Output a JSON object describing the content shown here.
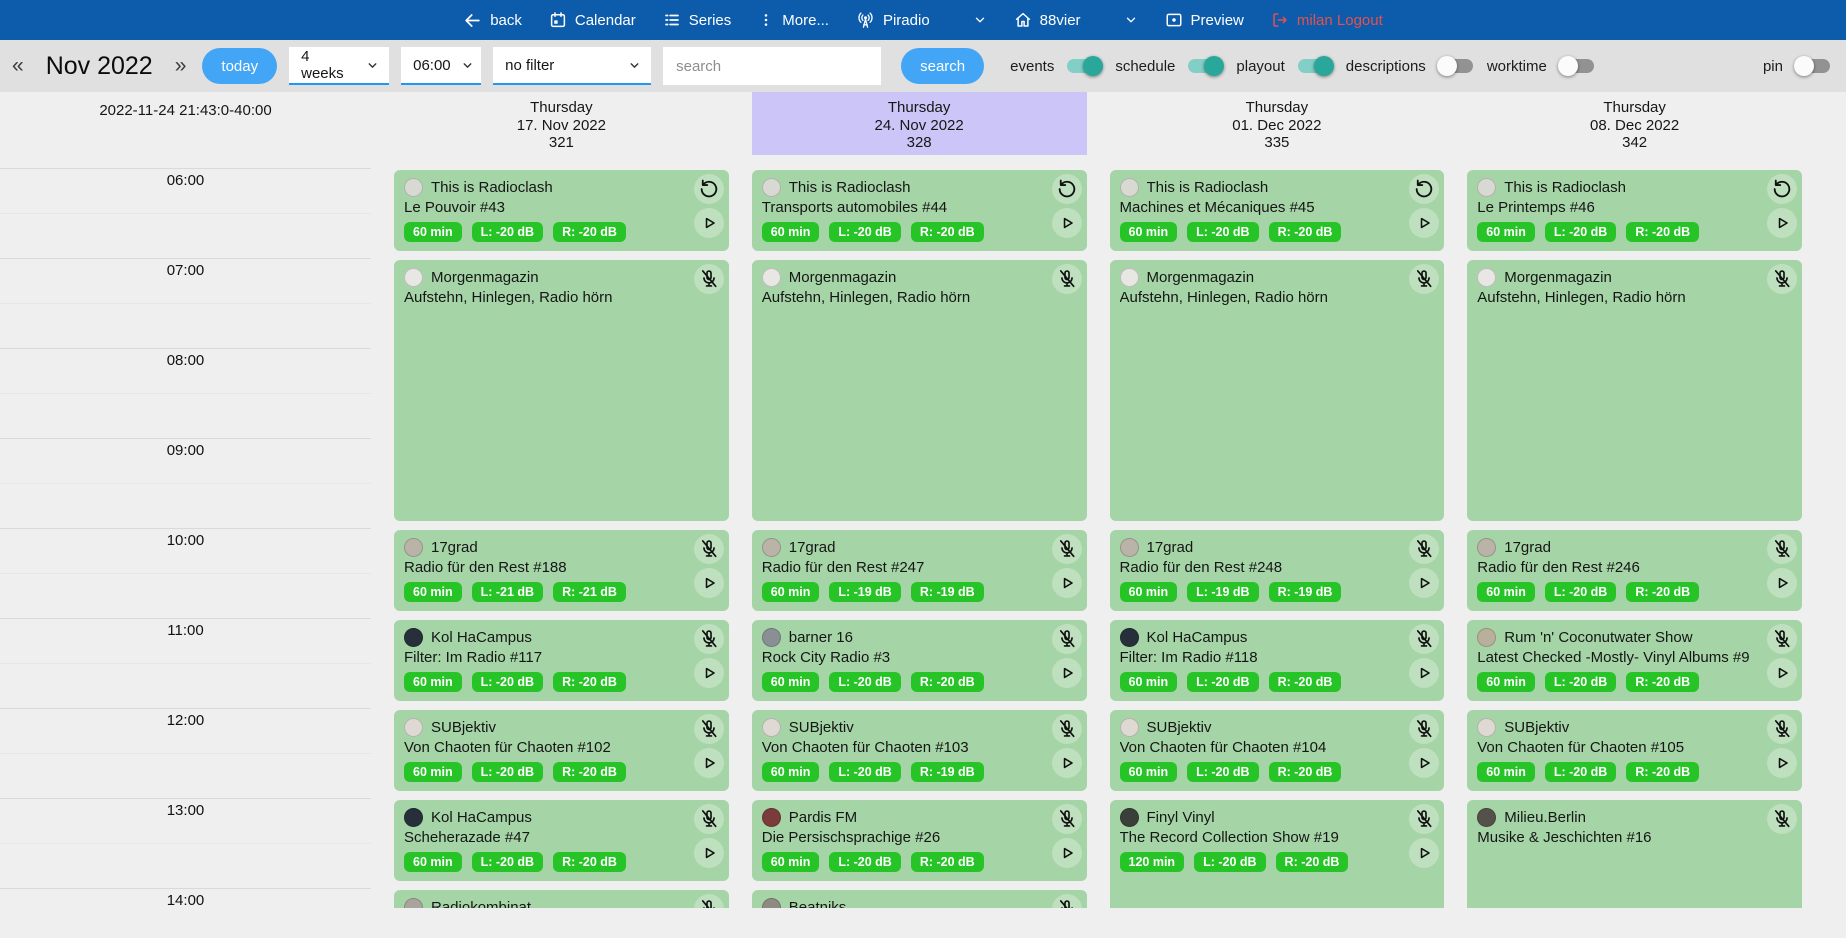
{
  "colors": {
    "topbar_bg": "#0d5cab",
    "accent_blue": "#42a5f5",
    "toolbar_bg": "#e0e0e0",
    "page_bg": "#efefef",
    "highlight_lavender": "#ccc5f7",
    "card_green": "#a5d4a6",
    "badge_green": "#27c427",
    "toggle_on": "#29a79a",
    "logout_red": "#e4504e"
  },
  "topbar": {
    "items": [
      {
        "id": "back",
        "icon": "arrow-left-icon",
        "label": "back"
      },
      {
        "id": "calendar",
        "icon": "calendar-icon",
        "label": "Calendar"
      },
      {
        "id": "series",
        "icon": "list-icon",
        "label": "Series"
      },
      {
        "id": "more",
        "icon": "kebab-icon",
        "label": "More..."
      },
      {
        "id": "piradio",
        "icon": "antenna-icon",
        "label": "Piradio",
        "chevron": true
      },
      {
        "id": "88vier",
        "icon": "home-icon",
        "label": "88vier",
        "chevron": true
      },
      {
        "id": "preview",
        "icon": "preview-icon",
        "label": "Preview"
      },
      {
        "id": "logout",
        "icon": "logout-icon",
        "label": "milan Logout",
        "danger": true
      }
    ]
  },
  "toolbar": {
    "prev_label": "«",
    "month_label": "Nov 2022",
    "next_label": "»",
    "today_label": "today",
    "range_value": "4 weeks",
    "start_time_value": "06:00",
    "filter_value": "no filter",
    "search_placeholder": "search",
    "search_label": "search",
    "toggles": [
      {
        "label": "events",
        "on": true
      },
      {
        "label": "schedule",
        "on": true
      },
      {
        "label": "playout",
        "on": true
      },
      {
        "label": "descriptions",
        "on": false
      },
      {
        "label": "worktime",
        "on": false
      }
    ],
    "pin_toggle": {
      "label": "pin",
      "on": false
    }
  },
  "calendar": {
    "timestamp": "2022-11-24 21:43:0-40:00",
    "times": [
      "06:00",
      "07:00",
      "08:00",
      "09:00",
      "10:00",
      "11:00",
      "12:00",
      "13:00",
      "14:00"
    ],
    "columns": [
      {
        "weekday": "Thursday",
        "date": "17. Nov 2022",
        "day_number": "321",
        "highlight": false,
        "events": [
          {
            "series": "This is Radioclash",
            "title": "Le Pouvoir #43",
            "start": "06:00",
            "duration_min": 60,
            "badges": [
              "60 min",
              "L: -20 dB",
              "R: -20 dB"
            ],
            "corner_icon": "rotate-ccw-icon",
            "has_play": true,
            "avatar_color": "#d9d9d4"
          },
          {
            "series": "Morgenmagazin",
            "title": "Aufstehn, Hinlegen, Radio hörn",
            "start": "07:00",
            "duration_min": 180,
            "badges": [],
            "corner_icon": "mic-off-icon",
            "has_play": false,
            "avatar_color": "#e9e7e3"
          },
          {
            "series": "17grad",
            "title": "Radio für den Rest #188",
            "start": "10:00",
            "duration_min": 60,
            "badges": [
              "60 min",
              "L: -21 dB",
              "R: -21 dB"
            ],
            "corner_icon": "mic-off-icon",
            "has_play": true,
            "avatar_color": "#b9b3a8"
          },
          {
            "series": "Kol HaCampus",
            "title": "Filter: Im Radio #117",
            "start": "11:00",
            "duration_min": 60,
            "badges": [
              "60 min",
              "L: -20 dB",
              "R: -20 dB"
            ],
            "corner_icon": "mic-off-icon",
            "has_play": true,
            "avatar_color": "#27303a"
          },
          {
            "series": "SUBjektiv",
            "title": "Von Chaoten für Chaoten #102",
            "start": "12:00",
            "duration_min": 60,
            "badges": [
              "60 min",
              "L: -20 dB",
              "R: -20 dB"
            ],
            "corner_icon": "mic-off-icon",
            "has_play": true,
            "avatar_color": "#ded9d2"
          },
          {
            "series": "Kol HaCampus",
            "title": "Scheherazade #47",
            "start": "13:00",
            "duration_min": 60,
            "badges": [
              "60 min",
              "L: -20 dB",
              "R: -20 dB"
            ],
            "corner_icon": "mic-off-icon",
            "has_play": true,
            "avatar_color": "#27303a"
          },
          {
            "series": "Radiokombinat",
            "title": "",
            "start": "14:00",
            "duration_min": 60,
            "badges": [],
            "corner_icon": "mic-off-icon",
            "has_play": false,
            "avatar_color": "#a9a49c"
          }
        ]
      },
      {
        "weekday": "Thursday",
        "date": "24. Nov 2022",
        "day_number": "328",
        "highlight": true,
        "events": [
          {
            "series": "This is Radioclash",
            "title": "Transports automobiles #44",
            "start": "06:00",
            "duration_min": 60,
            "badges": [
              "60 min",
              "L: -20 dB",
              "R: -20 dB"
            ],
            "corner_icon": "rotate-ccw-icon",
            "has_play": true,
            "avatar_color": "#d9d9d4"
          },
          {
            "series": "Morgenmagazin",
            "title": "Aufstehn, Hinlegen, Radio hörn",
            "start": "07:00",
            "duration_min": 180,
            "badges": [],
            "corner_icon": "mic-off-icon",
            "has_play": false,
            "avatar_color": "#e9e7e3"
          },
          {
            "series": "17grad",
            "title": "Radio für den Rest #247",
            "start": "10:00",
            "duration_min": 60,
            "badges": [
              "60 min",
              "L: -19 dB",
              "R: -19 dB"
            ],
            "corner_icon": "mic-off-icon",
            "has_play": true,
            "avatar_color": "#b9b3a8"
          },
          {
            "series": "barner 16",
            "title": "Rock City Radio #3",
            "start": "11:00",
            "duration_min": 60,
            "badges": [
              "60 min",
              "L: -20 dB",
              "R: -20 dB"
            ],
            "corner_icon": "mic-off-icon",
            "has_play": true,
            "avatar_color": "#8a8f96"
          },
          {
            "series": "SUBjektiv",
            "title": "Von Chaoten für Chaoten #103",
            "start": "12:00",
            "duration_min": 60,
            "badges": [
              "60 min",
              "L: -20 dB",
              "R: -19 dB"
            ],
            "corner_icon": "mic-off-icon",
            "has_play": true,
            "avatar_color": "#ded9d2"
          },
          {
            "series": "Pardis FM",
            "title": "Die Persischsprachige #26",
            "start": "13:00",
            "duration_min": 60,
            "badges": [
              "60 min",
              "L: -20 dB",
              "R: -20 dB"
            ],
            "corner_icon": "mic-off-icon",
            "has_play": true,
            "avatar_color": "#7a3b3b"
          },
          {
            "series": "Beatniks",
            "title": "",
            "start": "14:00",
            "duration_min": 60,
            "badges": [],
            "corner_icon": "mic-off-icon",
            "has_play": false,
            "avatar_color": "#8f8a82"
          }
        ]
      },
      {
        "weekday": "Thursday",
        "date": "01. Dec 2022",
        "day_number": "335",
        "highlight": false,
        "events": [
          {
            "series": "This is Radioclash",
            "title": "Machines et Mécaniques #45",
            "start": "06:00",
            "duration_min": 60,
            "badges": [
              "60 min",
              "L: -20 dB",
              "R: -20 dB"
            ],
            "corner_icon": "rotate-ccw-icon",
            "has_play": true,
            "avatar_color": "#d9d9d4"
          },
          {
            "series": "Morgenmagazin",
            "title": "Aufstehn, Hinlegen, Radio hörn",
            "start": "07:00",
            "duration_min": 180,
            "badges": [],
            "corner_icon": "mic-off-icon",
            "has_play": false,
            "avatar_color": "#e9e7e3"
          },
          {
            "series": "17grad",
            "title": "Radio für den Rest #248",
            "start": "10:00",
            "duration_min": 60,
            "badges": [
              "60 min",
              "L: -19 dB",
              "R: -19 dB"
            ],
            "corner_icon": "mic-off-icon",
            "has_play": true,
            "avatar_color": "#b9b3a8"
          },
          {
            "series": "Kol HaCampus",
            "title": "Filter: Im Radio #118",
            "start": "11:00",
            "duration_min": 60,
            "badges": [
              "60 min",
              "L: -20 dB",
              "R: -20 dB"
            ],
            "corner_icon": "mic-off-icon",
            "has_play": true,
            "avatar_color": "#27303a"
          },
          {
            "series": "SUBjektiv",
            "title": "Von Chaoten für Chaoten #104",
            "start": "12:00",
            "duration_min": 60,
            "badges": [
              "60 min",
              "L: -20 dB",
              "R: -20 dB"
            ],
            "corner_icon": "mic-off-icon",
            "has_play": true,
            "avatar_color": "#ded9d2"
          },
          {
            "series": "Finyl Vinyl",
            "title": "The Record Collection Show #19",
            "start": "13:00",
            "duration_min": 120,
            "badges": [
              "120 min",
              "L: -20 dB",
              "R: -20 dB"
            ],
            "corner_icon": "mic-off-icon",
            "has_play": true,
            "avatar_color": "#3a3f3a"
          }
        ]
      },
      {
        "weekday": "Thursday",
        "date": "08. Dec 2022",
        "day_number": "342",
        "highlight": false,
        "events": [
          {
            "series": "This is Radioclash",
            "title": "Le Printemps #46",
            "start": "06:00",
            "duration_min": 60,
            "badges": [
              "60 min",
              "L: -20 dB",
              "R: -20 dB"
            ],
            "corner_icon": "rotate-ccw-icon",
            "has_play": true,
            "avatar_color": "#d9d9d4"
          },
          {
            "series": "Morgenmagazin",
            "title": "Aufstehn, Hinlegen, Radio hörn",
            "start": "07:00",
            "duration_min": 180,
            "badges": [],
            "corner_icon": "mic-off-icon",
            "has_play": false,
            "avatar_color": "#e9e7e3"
          },
          {
            "series": "17grad",
            "title": "Radio für den Rest #246",
            "start": "10:00",
            "duration_min": 60,
            "badges": [
              "60 min",
              "L: -20 dB",
              "R: -20 dB"
            ],
            "corner_icon": "mic-off-icon",
            "has_play": true,
            "avatar_color": "#b9b3a8"
          },
          {
            "series": "Rum 'n' Coconutwater Show",
            "title": "Latest Checked -Mostly- Vinyl Albums #9",
            "start": "11:00",
            "duration_min": 60,
            "badges": [
              "60 min",
              "L: -20 dB",
              "R: -20 dB"
            ],
            "corner_icon": "mic-off-icon",
            "has_play": true,
            "avatar_color": "#b8b09a"
          },
          {
            "series": "SUBjektiv",
            "title": "Von Chaoten für Chaoten #105",
            "start": "12:00",
            "duration_min": 60,
            "badges": [
              "60 min",
              "L: -20 dB",
              "R: -20 dB"
            ],
            "corner_icon": "mic-off-icon",
            "has_play": true,
            "avatar_color": "#ded9d2"
          },
          {
            "series": "Milieu.Berlin",
            "title": "Musike & Jeschichten #16",
            "start": "13:00",
            "duration_min": 120,
            "badges": [],
            "corner_icon": "mic-off-icon",
            "has_play": false,
            "avatar_color": "#54504a"
          }
        ]
      }
    ]
  }
}
